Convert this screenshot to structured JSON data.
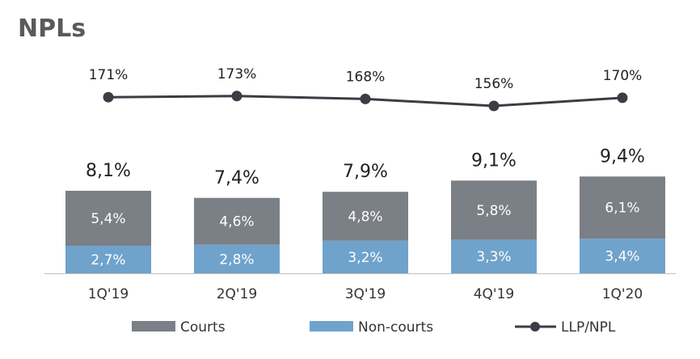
{
  "title": "NPLs",
  "colors": {
    "courts": "#7b7f86",
    "non_courts": "#6fa3cc",
    "line": "#3a3d44",
    "axis": "#bfbfbf"
  },
  "chart_data": {
    "type": "bar",
    "stacked": true,
    "categories": [
      "1Q'19",
      "2Q'19",
      "3Q'19",
      "4Q'19",
      "1Q'20"
    ],
    "series": [
      {
        "name": "Non-courts",
        "values": [
          2.7,
          2.8,
          3.2,
          3.3,
          3.4
        ],
        "labels": [
          "2,7%",
          "2,8%",
          "3,2%",
          "3,3%",
          "3,4%"
        ]
      },
      {
        "name": "Courts",
        "values": [
          5.4,
          4.6,
          4.8,
          5.8,
          6.1
        ],
        "labels": [
          "5,4%",
          "4,6%",
          "4,8%",
          "5,8%",
          "6,1%"
        ]
      }
    ],
    "totals": {
      "values": [
        8.1,
        7.4,
        7.9,
        9.1,
        9.4
      ],
      "labels": [
        "8,1%",
        "7,4%",
        "7,9%",
        "9,1%",
        "9,4%"
      ]
    },
    "line_series": {
      "name": "LLP/NPL",
      "type": "line",
      "values": [
        171,
        173,
        168,
        156,
        170
      ],
      "labels": [
        "171%",
        "173%",
        "168%",
        "156%",
        "170%"
      ]
    },
    "legend": {
      "items": [
        "Courts",
        "Non-courts",
        "LLP/NPL"
      ],
      "position": "bottom"
    },
    "grid": false
  }
}
